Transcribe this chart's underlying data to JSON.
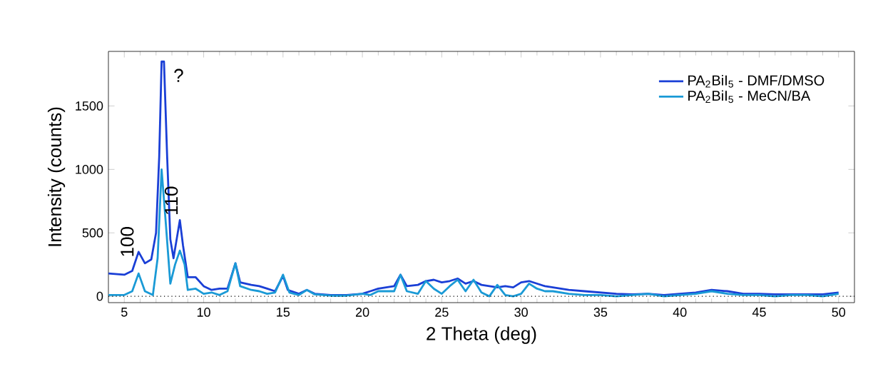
{
  "chart_data": {
    "type": "line",
    "xlabel": "2 Theta (deg)",
    "ylabel": "Intensity (counts)",
    "xlim": [
      4,
      51
    ],
    "ylim": [
      -50,
      1930
    ],
    "xticks": [
      5,
      10,
      15,
      20,
      25,
      30,
      35,
      40,
      45,
      50
    ],
    "yticks": [
      0,
      500,
      1000,
      1500
    ],
    "grid": false,
    "legend": "top right",
    "marker": "none",
    "line_style": "solid",
    "ref_lines": [
      {
        "axis": "y",
        "value": 0,
        "color": "#000000",
        "line_style": "dotted"
      }
    ],
    "annotations": [
      {
        "text": "100",
        "x": 5.9,
        "y": 350
      },
      {
        "text": "110",
        "x": 8.5,
        "y": 600
      },
      {
        "text": "?",
        "x": 7.45,
        "y": 1850
      }
    ],
    "series": [
      {
        "name": "PA$_{2}$BiI$_{5}$ - DMF/DMSO",
        "color": "#1a3fd6",
        "x": [
          4,
          5,
          5.5,
          5.9,
          6.3,
          6.7,
          7.0,
          7.2,
          7.35,
          7.5,
          7.7,
          7.9,
          8.1,
          8.3,
          8.5,
          8.7,
          9.0,
          9.5,
          10,
          10.5,
          11,
          11.5,
          12,
          12.3,
          13,
          13.5,
          14,
          14.5,
          15,
          15.3,
          16,
          16.5,
          17,
          18,
          19,
          20,
          20.5,
          21,
          22,
          22.4,
          22.8,
          23.5,
          24,
          24.5,
          25,
          25.5,
          26,
          26.5,
          27,
          27.5,
          28,
          28.5,
          29,
          29.5,
          30,
          30.5,
          31,
          31.5,
          32,
          33,
          34,
          35,
          36,
          37,
          38,
          39,
          40,
          41,
          42,
          43,
          44,
          45,
          46,
          47,
          48,
          49,
          50
        ],
        "values": [
          180,
          170,
          200,
          350,
          260,
          290,
          500,
          1100,
          1850,
          1850,
          1100,
          450,
          300,
          450,
          600,
          400,
          150,
          150,
          80,
          50,
          60,
          60,
          260,
          110,
          90,
          80,
          60,
          40,
          160,
          50,
          20,
          50,
          20,
          10,
          10,
          20,
          40,
          60,
          80,
          170,
          80,
          90,
          120,
          130,
          110,
          120,
          140,
          100,
          120,
          90,
          80,
          70,
          80,
          70,
          110,
          120,
          100,
          80,
          70,
          50,
          40,
          30,
          20,
          15,
          20,
          10,
          20,
          30,
          50,
          40,
          20,
          20,
          15,
          15,
          15,
          15,
          30
        ]
      },
      {
        "name": "PA$_{2}$BiI$_{5}$ - MeCN/BA",
        "color": "#1a9ad6",
        "x": [
          4,
          5,
          5.5,
          5.9,
          6.3,
          6.8,
          7.1,
          7.35,
          7.6,
          7.9,
          8.2,
          8.5,
          8.8,
          9.0,
          9.5,
          10,
          10.5,
          11,
          11.5,
          12,
          12.3,
          13,
          13.5,
          14,
          14.5,
          15,
          15.4,
          16,
          16.5,
          17,
          18,
          19,
          20,
          20.5,
          21,
          22,
          22.4,
          22.8,
          23.5,
          24,
          24.5,
          25,
          25.5,
          26,
          26.5,
          27,
          27.5,
          28,
          28.5,
          29,
          29.5,
          30,
          30.5,
          31,
          31.5,
          32,
          33,
          34,
          35,
          36,
          37,
          38,
          39,
          40,
          41,
          42,
          43,
          44,
          45,
          46,
          47,
          48,
          49,
          50
        ],
        "values": [
          10,
          10,
          40,
          180,
          40,
          10,
          300,
          1000,
          600,
          100,
          250,
          360,
          250,
          50,
          60,
          20,
          30,
          10,
          40,
          260,
          80,
          50,
          40,
          20,
          30,
          170,
          30,
          10,
          50,
          15,
          5,
          5,
          20,
          10,
          40,
          40,
          170,
          40,
          20,
          120,
          60,
          20,
          80,
          130,
          40,
          130,
          30,
          0,
          90,
          10,
          0,
          20,
          100,
          60,
          40,
          40,
          20,
          10,
          10,
          0,
          10,
          20,
          0,
          10,
          20,
          40,
          20,
          10,
          10,
          0,
          10,
          10,
          0,
          20
        ]
      }
    ]
  }
}
